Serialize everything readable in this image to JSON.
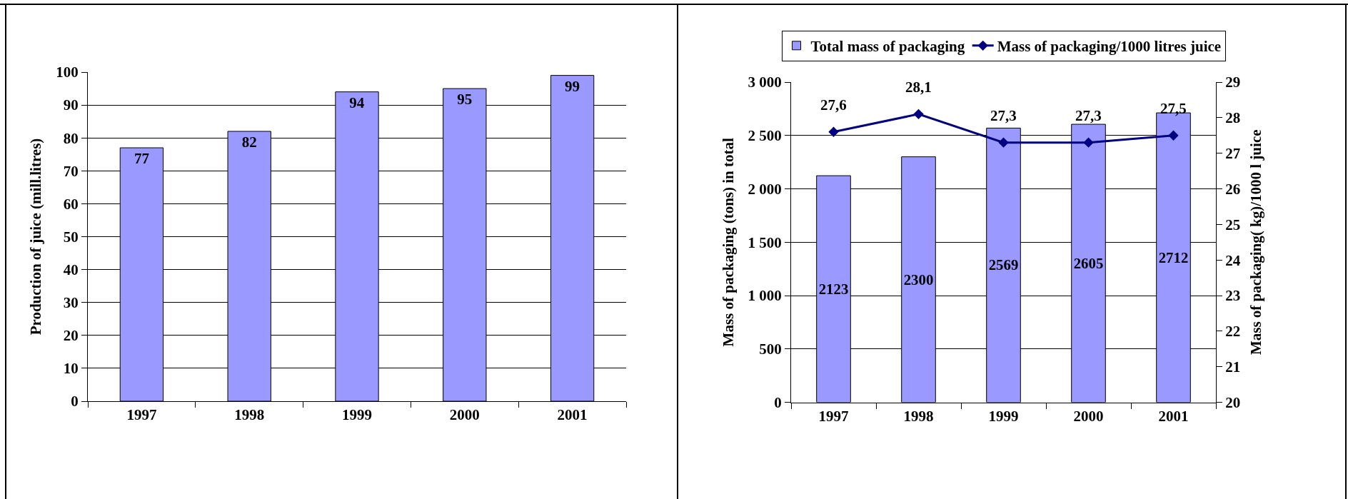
{
  "chart_data": [
    {
      "type": "bar",
      "ylabel": "Production of juice (mill.litres)",
      "categories": [
        "1997",
        "1998",
        "1999",
        "2000",
        "2001"
      ],
      "values": [
        77,
        82,
        94,
        95,
        99
      ],
      "color": "#9999ff",
      "ylim": [
        0,
        100
      ],
      "yticks": [
        0,
        10,
        20,
        30,
        40,
        50,
        60,
        70,
        80,
        90,
        100
      ],
      "grid": "y",
      "data_labels": true
    },
    {
      "type": "bar",
      "ylabel": "Mass of packaging (tons) in total",
      "y2label": "Mass of packaging( kg)/1000 l juice",
      "categories": [
        "1997",
        "1998",
        "1999",
        "2000",
        "2001"
      ],
      "series": [
        {
          "name": "Total mass of packaging",
          "type": "bar",
          "color": "#9999ff",
          "values": [
            2123,
            2300,
            2569,
            2605,
            2712
          ]
        },
        {
          "name": "Mass of packaging/1000 litres juice",
          "type": "line",
          "axis": "y2",
          "color": "#000080",
          "values": [
            27.6,
            28.1,
            27.3,
            27.3,
            27.5
          ],
          "value_labels": [
            "27,6",
            "28,1",
            "27,3",
            "27,3",
            "27,5"
          ],
          "marker": "diamond",
          "line_style": "solid"
        }
      ],
      "ylim": [
        0,
        3000
      ],
      "yticks": [
        0,
        500,
        {
          "value": 1000,
          "label": "1 000"
        },
        {
          "value": 1500,
          "label": "1 500"
        },
        {
          "value": 2000,
          "label": "2 000"
        },
        {
          "value": 2500,
          "label": "2 500"
        },
        {
          "value": 3000,
          "label": "3 000"
        }
      ],
      "y2lim": [
        20,
        29
      ],
      "y2ticks": [
        20,
        21,
        22,
        23,
        24,
        25,
        26,
        27,
        28,
        29
      ],
      "grid": "y",
      "legend": "top",
      "data_labels": true
    }
  ]
}
